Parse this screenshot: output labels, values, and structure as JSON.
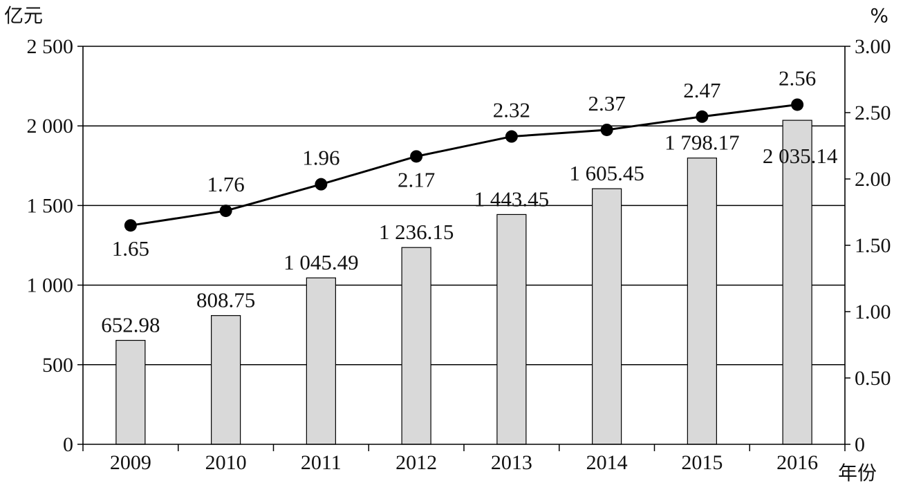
{
  "chart_data": {
    "type": "bar",
    "categories": [
      "2009",
      "2010",
      "2011",
      "2012",
      "2013",
      "2014",
      "2015",
      "2016"
    ],
    "bar_series": {
      "values": [
        652.98,
        808.75,
        1045.49,
        1236.15,
        1443.45,
        1605.45,
        1798.17,
        2035.14
      ],
      "labels": [
        "652.98",
        "808.75",
        "1 045.49",
        "1 236.15",
        "1 443.45",
        "1 605.45",
        "1 798.17",
        "2 035.14"
      ],
      "color": "#d9d9d9",
      "axis": "left"
    },
    "line_series": {
      "values": [
        1.65,
        1.76,
        1.96,
        2.17,
        2.32,
        2.37,
        2.47,
        2.56
      ],
      "labels": [
        "1.65",
        "1.76",
        "1.96",
        "2.17",
        "2.32",
        "2.37",
        "2.47",
        "2.56"
      ],
      "color": "#000000",
      "axis": "right"
    },
    "left_axis": {
      "unit": "亿元",
      "ylim": [
        0,
        2500
      ],
      "ticks": [
        0,
        500,
        1000,
        1500,
        2000,
        2500
      ],
      "tick_labels": [
        "0",
        "500",
        "1 000",
        "1 500",
        "2 000",
        "2 500"
      ]
    },
    "right_axis": {
      "unit": "%",
      "ylim": [
        0,
        3
      ],
      "ticks": [
        0,
        0.5,
        1,
        1.5,
        2,
        2.5,
        3
      ],
      "tick_labels": [
        "0",
        "0.50",
        "1.00",
        "1.50",
        "2.00",
        "2.50",
        "3.00"
      ]
    },
    "x_axis": {
      "unit": "年份"
    },
    "grid": true,
    "legend": false
  }
}
